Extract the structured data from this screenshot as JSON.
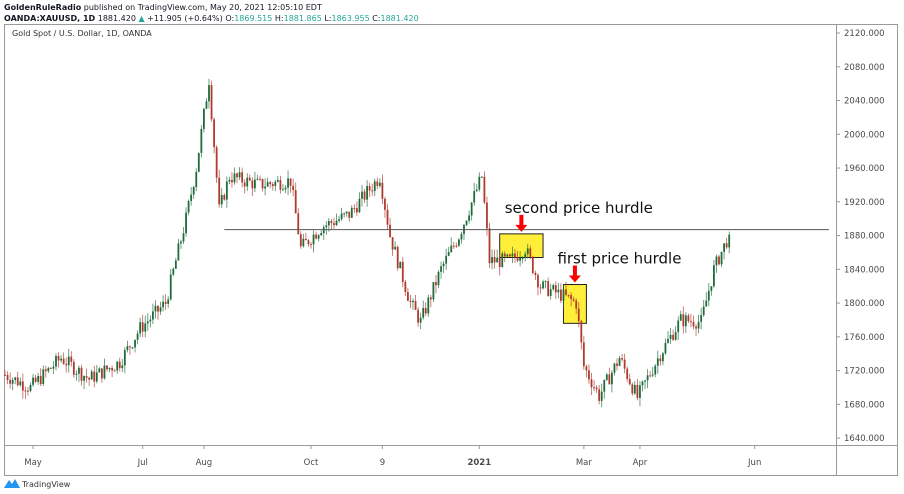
{
  "header": {
    "publisher": "GoldenRuleRadio",
    "published_text": "published on TradingView.com, May 20, 2021 12:05:10 EDT",
    "symbol": "OANDA:XAUUSD, 1D",
    "last": "1881.420",
    "change": "+11.905 (+0.64%)",
    "o_label": "O:",
    "open": "1869.515",
    "h_label": "H:",
    "high": "1881.865",
    "l_label": "L:",
    "low": "1863.955",
    "c_label": "C:",
    "close": "1881.420"
  },
  "footer": {
    "brand": "TradingView"
  },
  "colors": {
    "up": "#1f6b3c",
    "down": "#b03a2e",
    "highlight": "#ffef3a",
    "arrow": "#ff0000",
    "level_line": "#555555"
  },
  "chart_data": {
    "type": "candlestick",
    "title": "Gold Spot / U.S. Dollar, 1D, OANDA",
    "ylim": [
      1620,
      2135
    ],
    "xlim": [
      0,
      325
    ],
    "y_ticks": [
      "2120.000",
      "2080.000",
      "2040.000",
      "2000.000",
      "1960.000",
      "1920.000",
      "1880.000",
      "1840.000",
      "1800.000",
      "1760.000",
      "1720.000",
      "1680.000",
      "1640.000"
    ],
    "x_ticks": [
      {
        "label": "May",
        "day": 11
      },
      {
        "label": "Jul",
        "day": 54
      },
      {
        "label": "Aug",
        "day": 78
      },
      {
        "label": "Oct",
        "day": 120
      },
      {
        "label": "9",
        "day": 148
      },
      {
        "label": "2021",
        "day": 186,
        "bold": true
      },
      {
        "label": "Mar",
        "day": 227
      },
      {
        "label": "Apr",
        "day": 249
      },
      {
        "label": "Jun",
        "day": 294
      }
    ],
    "close_waypoints": [
      {
        "day": 0,
        "close": 1715
      },
      {
        "day": 10,
        "close": 1700
      },
      {
        "day": 22,
        "close": 1735
      },
      {
        "day": 33,
        "close": 1710
      },
      {
        "day": 45,
        "close": 1730
      },
      {
        "day": 53,
        "close": 1770
      },
      {
        "day": 63,
        "close": 1800
      },
      {
        "day": 71,
        "close": 1900
      },
      {
        "day": 75,
        "close": 1960
      },
      {
        "day": 80,
        "close": 2065
      },
      {
        "day": 84,
        "close": 1910
      },
      {
        "day": 88,
        "close": 1950
      },
      {
        "day": 100,
        "close": 1940
      },
      {
        "day": 112,
        "close": 1945
      },
      {
        "day": 116,
        "close": 1865
      },
      {
        "day": 124,
        "close": 1890
      },
      {
        "day": 135,
        "close": 1905
      },
      {
        "day": 147,
        "close": 1950
      },
      {
        "day": 151,
        "close": 1880
      },
      {
        "day": 159,
        "close": 1800
      },
      {
        "day": 163,
        "close": 1778
      },
      {
        "day": 171,
        "close": 1840
      },
      {
        "day": 178,
        "close": 1880
      },
      {
        "day": 187,
        "close": 1950
      },
      {
        "day": 190,
        "close": 1850
      },
      {
        "day": 198,
        "close": 1850
      },
      {
        "day": 204,
        "close": 1865
      },
      {
        "day": 210,
        "close": 1820
      },
      {
        "day": 218,
        "close": 1810
      },
      {
        "day": 224,
        "close": 1800
      },
      {
        "day": 227,
        "close": 1725
      },
      {
        "day": 233,
        "close": 1690
      },
      {
        "day": 241,
        "close": 1735
      },
      {
        "day": 248,
        "close": 1688
      },
      {
        "day": 257,
        "close": 1740
      },
      {
        "day": 265,
        "close": 1780
      },
      {
        "day": 273,
        "close": 1778
      },
      {
        "day": 278,
        "close": 1840
      },
      {
        "day": 284,
        "close": 1881
      }
    ],
    "level_line": {
      "price": 1887,
      "from_day": 86,
      "to_day": 325
    },
    "annotations": [
      {
        "text": "second price hurdle",
        "box": {
          "day_from": 194,
          "day_to": 211,
          "price_top": 1882,
          "price_bottom": 1854
        }
      },
      {
        "text": "first price hurdle",
        "box": {
          "day_from": 219,
          "day_to": 228,
          "price_top": 1822,
          "price_bottom": 1776
        }
      }
    ]
  }
}
